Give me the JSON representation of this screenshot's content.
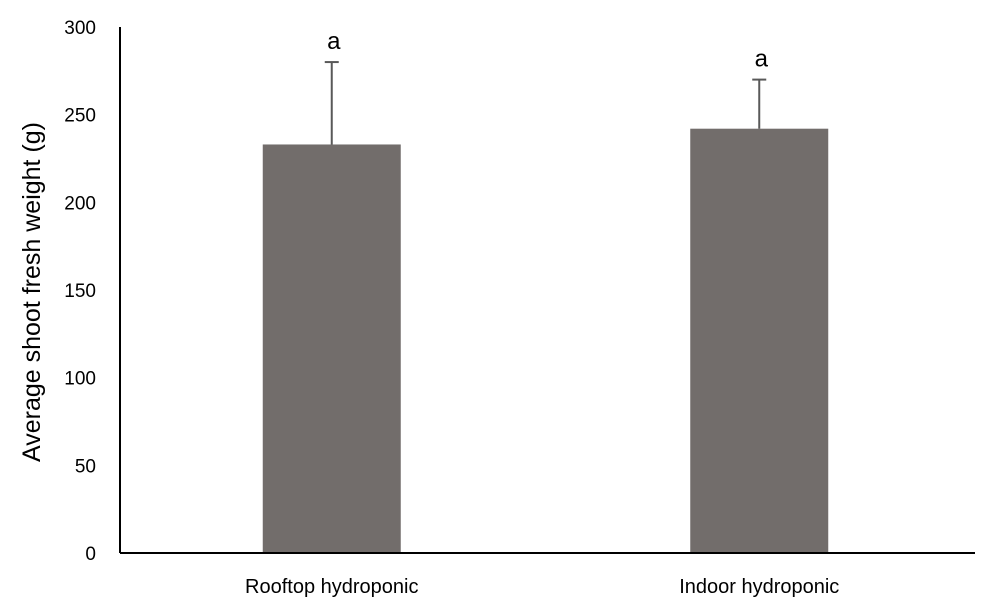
{
  "chart_data": {
    "type": "bar",
    "categories": [
      "Rooftop hydroponic",
      "Indoor hydroponic"
    ],
    "values": [
      233,
      242
    ],
    "error_plus": [
      47,
      28
    ],
    "significance_letters": [
      "a",
      "a"
    ],
    "ylabel": "Average shoot fresh weight (g)",
    "xlabel": "",
    "ylim": [
      0,
      300
    ],
    "yticks": [
      0,
      50,
      100,
      150,
      200,
      250,
      300
    ],
    "grid": false,
    "legend": "none",
    "bar_color": "#726d6b",
    "error_bar_color": "#595959",
    "axis_color": "#000000"
  }
}
